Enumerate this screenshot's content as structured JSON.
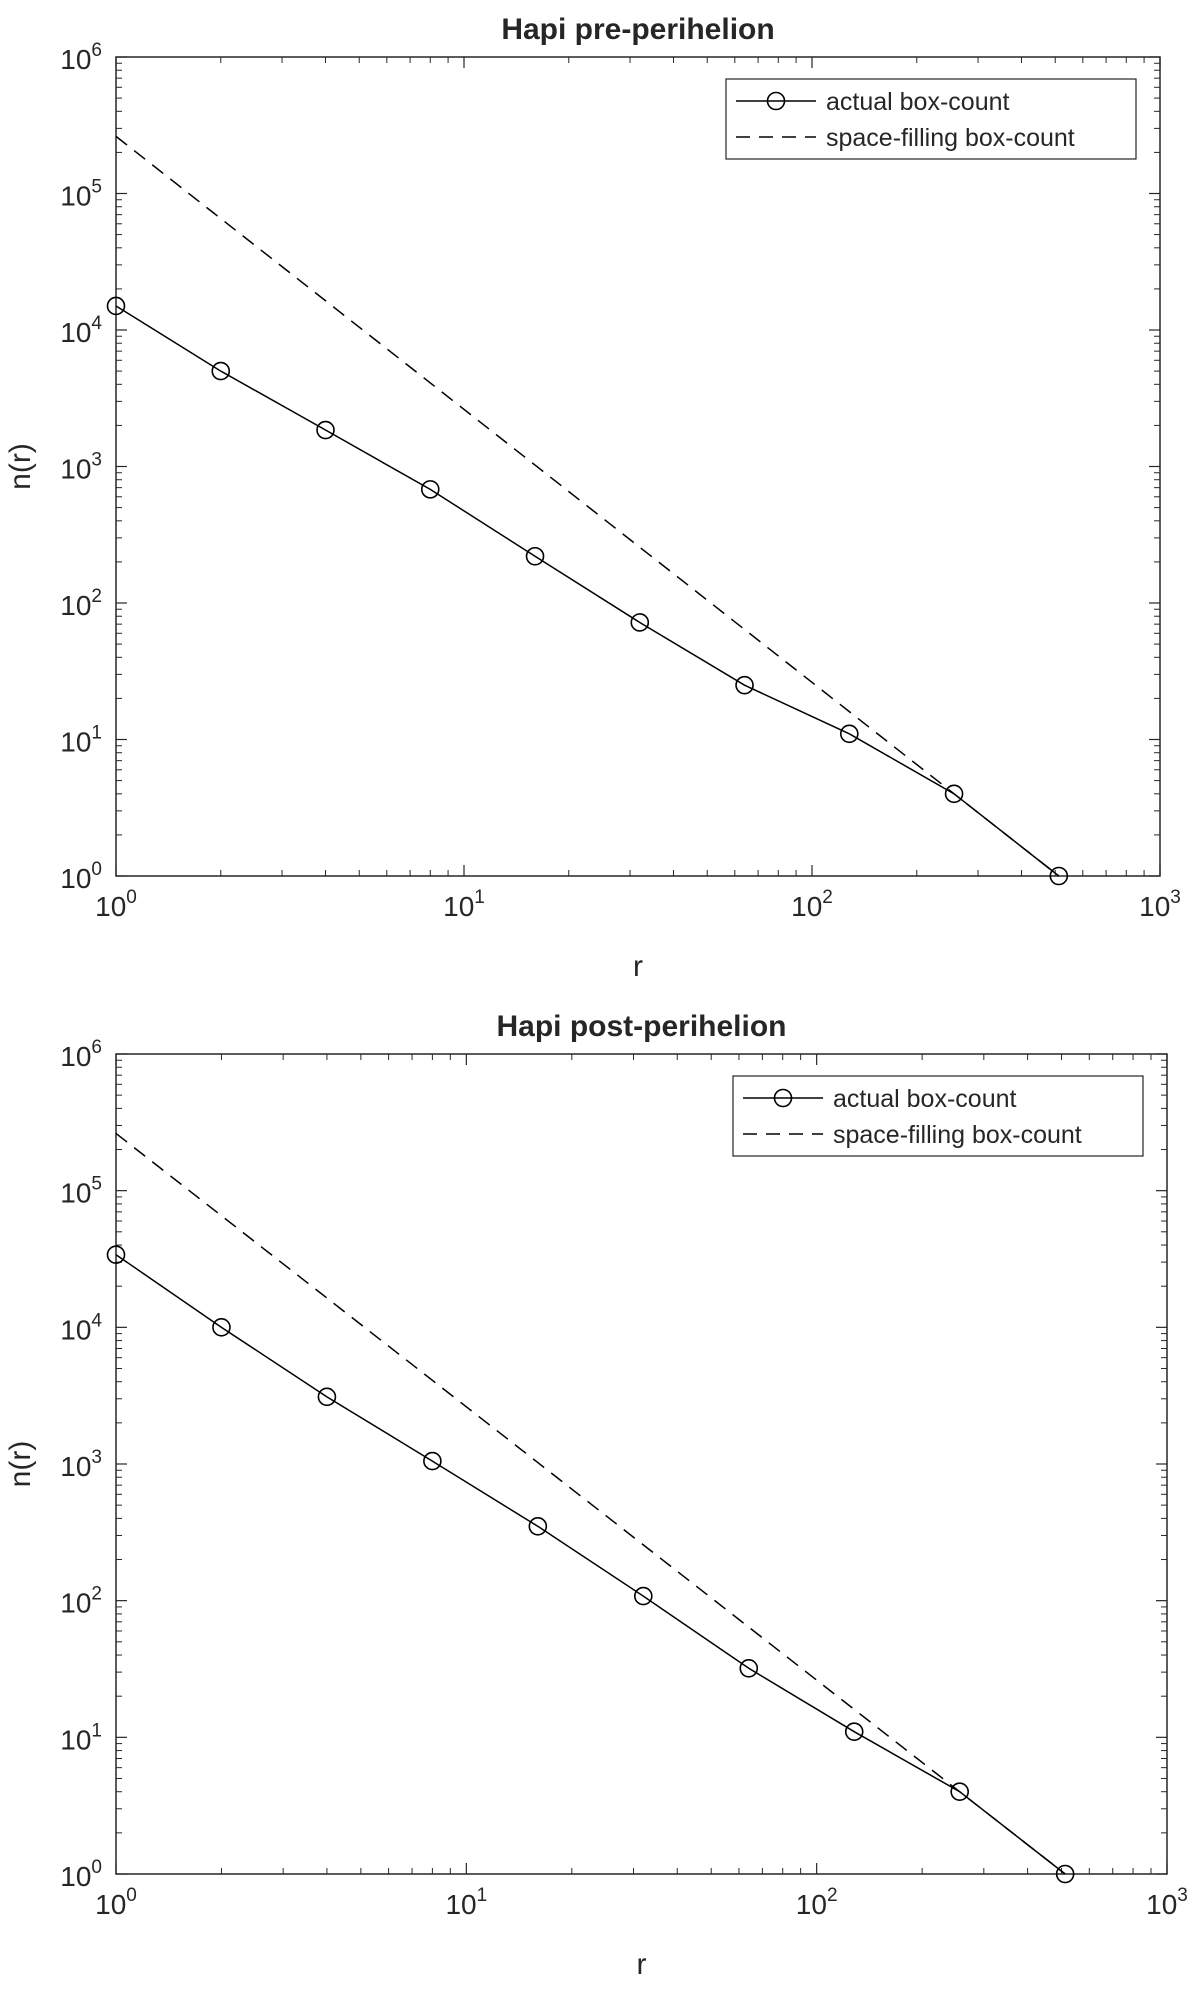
{
  "chart_data": [
    {
      "type": "line",
      "title": "Hapi pre-perihelion",
      "xlabel": "r",
      "ylabel": "n(r)",
      "xscale": "log",
      "yscale": "log",
      "xlim": [
        1,
        1000
      ],
      "ylim": [
        1,
        1000000
      ],
      "xticks": [
        {
          "base": "10",
          "exp": "0"
        },
        {
          "base": "10",
          "exp": "1"
        },
        {
          "base": "10",
          "exp": "2"
        },
        {
          "base": "10",
          "exp": "3"
        }
      ],
      "yticks": [
        {
          "base": "10",
          "exp": "0"
        },
        {
          "base": "10",
          "exp": "1"
        },
        {
          "base": "10",
          "exp": "2"
        },
        {
          "base": "10",
          "exp": "3"
        },
        {
          "base": "10",
          "exp": "4"
        },
        {
          "base": "10",
          "exp": "5"
        },
        {
          "base": "10",
          "exp": "6"
        }
      ],
      "grid": false,
      "legend_position": "top-right",
      "series": [
        {
          "name": "actual box-count",
          "style": "solid-circle-markers",
          "color": "#000000",
          "x": [
            1,
            2,
            4,
            8,
            16,
            32,
            64,
            128,
            256,
            512
          ],
          "y": [
            15000,
            5000,
            1850,
            680,
            220,
            72,
            25,
            11,
            4,
            1
          ]
        },
        {
          "name": "space-filling box-count",
          "style": "dashed",
          "color": "#000000",
          "x": [
            1,
            2,
            4,
            8,
            16,
            32,
            64,
            128,
            256,
            512
          ],
          "y": [
            262144,
            65536,
            16384,
            4096,
            1024,
            256,
            64,
            16,
            4,
            1
          ]
        }
      ]
    },
    {
      "type": "line",
      "title": "Hapi post-perihelion",
      "xlabel": "r",
      "ylabel": "n(r)",
      "xscale": "log",
      "yscale": "log",
      "xlim": [
        1,
        1000
      ],
      "ylim": [
        1,
        1000000
      ],
      "xticks": [
        {
          "base": "10",
          "exp": "0"
        },
        {
          "base": "10",
          "exp": "1"
        },
        {
          "base": "10",
          "exp": "2"
        },
        {
          "base": "10",
          "exp": "3"
        }
      ],
      "yticks": [
        {
          "base": "10",
          "exp": "0"
        },
        {
          "base": "10",
          "exp": "1"
        },
        {
          "base": "10",
          "exp": "2"
        },
        {
          "base": "10",
          "exp": "3"
        },
        {
          "base": "10",
          "exp": "4"
        },
        {
          "base": "10",
          "exp": "5"
        },
        {
          "base": "10",
          "exp": "6"
        }
      ],
      "grid": false,
      "legend_position": "top-right",
      "series": [
        {
          "name": "actual box-count",
          "style": "solid-circle-markers",
          "color": "#000000",
          "x": [
            1,
            2,
            4,
            8,
            16,
            32,
            64,
            128,
            256,
            512
          ],
          "y": [
            34000,
            10000,
            3100,
            1050,
            350,
            108,
            32,
            11,
            4,
            1
          ]
        },
        {
          "name": "space-filling box-count",
          "style": "dashed",
          "color": "#000000",
          "x": [
            1,
            2,
            4,
            8,
            16,
            32,
            64,
            128,
            256,
            512
          ],
          "y": [
            262144,
            65536,
            16384,
            4096,
            1024,
            256,
            64,
            16,
            4,
            1
          ]
        }
      ]
    }
  ]
}
